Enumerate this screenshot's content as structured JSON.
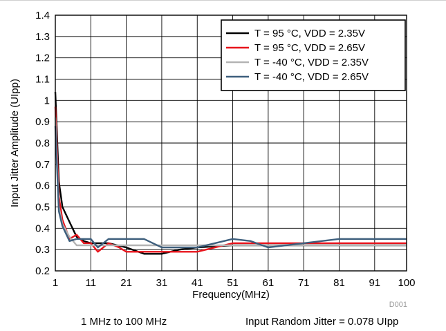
{
  "chart_data": {
    "type": "line",
    "xlabel": "Frequency(MHz)",
    "ylabel": "Input Jitter Amplitude (UIpp)",
    "xlim": [
      1,
      100
    ],
    "ylim": [
      0.2,
      1.4
    ],
    "x_ticks": [
      1,
      11,
      21,
      31,
      41,
      51,
      61,
      71,
      81,
      91,
      100
    ],
    "y_ticks": [
      0.2,
      0.3,
      0.4,
      0.5,
      0.6,
      0.7,
      0.8,
      0.9,
      1,
      1.1,
      1.2,
      1.3,
      1.4
    ],
    "grid": true,
    "legend_position": "top-right",
    "figure_id": "D001",
    "series": [
      {
        "name": "T = 95 °C, VDD = 2.35V",
        "color": "#000000",
        "points": [
          [
            1,
            1.04
          ],
          [
            2,
            0.62
          ],
          [
            3,
            0.5
          ],
          [
            5,
            0.43
          ],
          [
            7,
            0.36
          ],
          [
            9,
            0.34
          ],
          [
            11,
            0.33
          ],
          [
            13,
            0.33
          ],
          [
            16,
            0.33
          ],
          [
            21,
            0.31
          ],
          [
            26,
            0.28
          ],
          [
            31,
            0.28
          ],
          [
            36,
            0.3
          ],
          [
            41,
            0.31
          ],
          [
            51,
            0.32
          ],
          [
            61,
            0.32
          ],
          [
            71,
            0.32
          ],
          [
            81,
            0.32
          ],
          [
            91,
            0.32
          ],
          [
            100,
            0.32
          ]
        ]
      },
      {
        "name": "T = 95 °C, VDD = 2.65V",
        "color": "#e8131b",
        "points": [
          [
            1,
            0.97
          ],
          [
            2,
            0.55
          ],
          [
            3,
            0.44
          ],
          [
            5,
            0.35
          ],
          [
            7,
            0.37
          ],
          [
            9,
            0.33
          ],
          [
            11,
            0.33
          ],
          [
            13,
            0.29
          ],
          [
            16,
            0.33
          ],
          [
            19,
            0.31
          ],
          [
            21,
            0.29
          ],
          [
            31,
            0.29
          ],
          [
            41,
            0.29
          ],
          [
            46,
            0.31
          ],
          [
            51,
            0.33
          ],
          [
            61,
            0.33
          ],
          [
            71,
            0.33
          ],
          [
            81,
            0.33
          ],
          [
            91,
            0.33
          ],
          [
            100,
            0.33
          ]
        ]
      },
      {
        "name": "T = -40 °C, VDD = 2.35V",
        "color": "#b3b3b3",
        "points": [
          [
            1,
            0.92
          ],
          [
            2,
            0.5
          ],
          [
            3,
            0.42
          ],
          [
            5,
            0.36
          ],
          [
            7,
            0.32
          ],
          [
            9,
            0.32
          ],
          [
            11,
            0.32
          ],
          [
            13,
            0.32
          ],
          [
            16,
            0.32
          ],
          [
            21,
            0.32
          ],
          [
            31,
            0.32
          ],
          [
            41,
            0.32
          ],
          [
            51,
            0.32
          ],
          [
            61,
            0.32
          ],
          [
            71,
            0.32
          ],
          [
            81,
            0.32
          ],
          [
            91,
            0.32
          ],
          [
            100,
            0.32
          ]
        ]
      },
      {
        "name": "T = -40 °C, VDD = 2.65V",
        "color": "#3e5f7d",
        "points": [
          [
            1,
            0.88
          ],
          [
            2,
            0.48
          ],
          [
            3,
            0.41
          ],
          [
            5,
            0.34
          ],
          [
            7,
            0.35
          ],
          [
            9,
            0.35
          ],
          [
            11,
            0.35
          ],
          [
            13,
            0.31
          ],
          [
            16,
            0.35
          ],
          [
            21,
            0.35
          ],
          [
            26,
            0.35
          ],
          [
            31,
            0.31
          ],
          [
            41,
            0.31
          ],
          [
            51,
            0.35
          ],
          [
            56,
            0.34
          ],
          [
            61,
            0.31
          ],
          [
            66,
            0.32
          ],
          [
            71,
            0.33
          ],
          [
            81,
            0.35
          ],
          [
            91,
            0.35
          ],
          [
            100,
            0.35
          ]
        ]
      }
    ]
  },
  "captions": {
    "left": "1 MHz to 100 MHz",
    "right": "Input Random Jitter = 0.078 UIpp"
  }
}
